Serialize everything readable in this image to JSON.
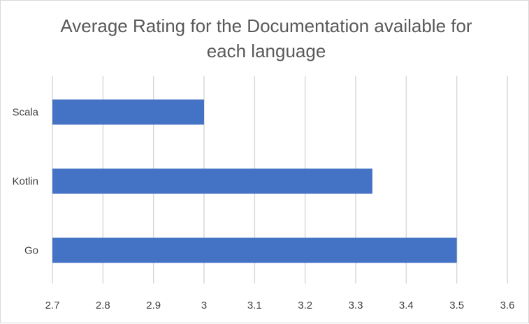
{
  "chart_data": {
    "type": "bar",
    "orientation": "horizontal",
    "title_lines": [
      "Average Rating for the Documentation available for",
      "each language"
    ],
    "title": "Average Rating for the Documentation available for each language",
    "categories": [
      "Scala",
      "Kotlin",
      "Go"
    ],
    "values": [
      3.0,
      3.333,
      3.5
    ],
    "xlim": [
      2.7,
      3.6
    ],
    "xticks": [
      "2.7",
      "2.8",
      "2.9",
      "3",
      "3.1",
      "3.2",
      "3.3",
      "3.4",
      "3.5",
      "3.6"
    ],
    "grid": true,
    "legend": "none",
    "colors": {
      "bar": "#4472C4",
      "grid": "#d9d9d9",
      "text": "#595959"
    }
  }
}
